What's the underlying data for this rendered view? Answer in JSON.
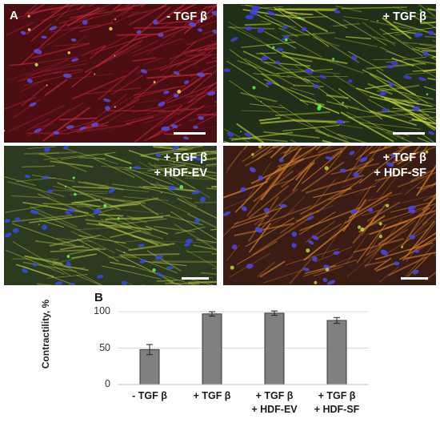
{
  "panel_letter_a": "A",
  "panel_letter_b": "B",
  "panels": [
    {
      "lines": [
        "- TGF β"
      ],
      "colors": {
        "base": "#4a0d12",
        "fiber": "#c0283a",
        "nucleus": "#5a4ee0",
        "speck": "#e8f060"
      }
    },
    {
      "lines": [
        "+ TGF β"
      ],
      "colors": {
        "base": "#203018",
        "fiber": "#c8d838",
        "nucleus": "#4040e0",
        "speck": "#60ff50"
      }
    },
    {
      "lines": [
        "+ TGF β",
        "+ HDF-EV"
      ],
      "colors": {
        "base": "#2c3a20",
        "fiber": "#a8b840",
        "nucleus": "#3a4ae8",
        "speck": "#70ff60"
      }
    },
    {
      "lines": [
        "+ TGF β",
        "+ HDF-SF"
      ],
      "colors": {
        "base": "#3a1c14",
        "fiber": "#d8822a",
        "nucleus": "#4a4ae0",
        "speck": "#c8e040"
      }
    }
  ],
  "chart_data": {
    "type": "bar",
    "categories": [
      [
        "- TGF β"
      ],
      [
        "+ TGF β"
      ],
      [
        "+ TGF β",
        "+ HDF-EV"
      ],
      [
        "+ TGF β",
        "+ HDF-SF"
      ]
    ],
    "values": [
      48,
      97,
      98,
      88
    ],
    "errors": [
      7,
      3,
      3,
      4
    ],
    "ylabel": "Contractility, %",
    "yticks": [
      0,
      50,
      100
    ],
    "ylim": [
      0,
      110
    ],
    "grid": true,
    "bar_color": "#808080",
    "bar_edge_color": "#3a3a3a",
    "grid_color": "#d9d9d9"
  }
}
